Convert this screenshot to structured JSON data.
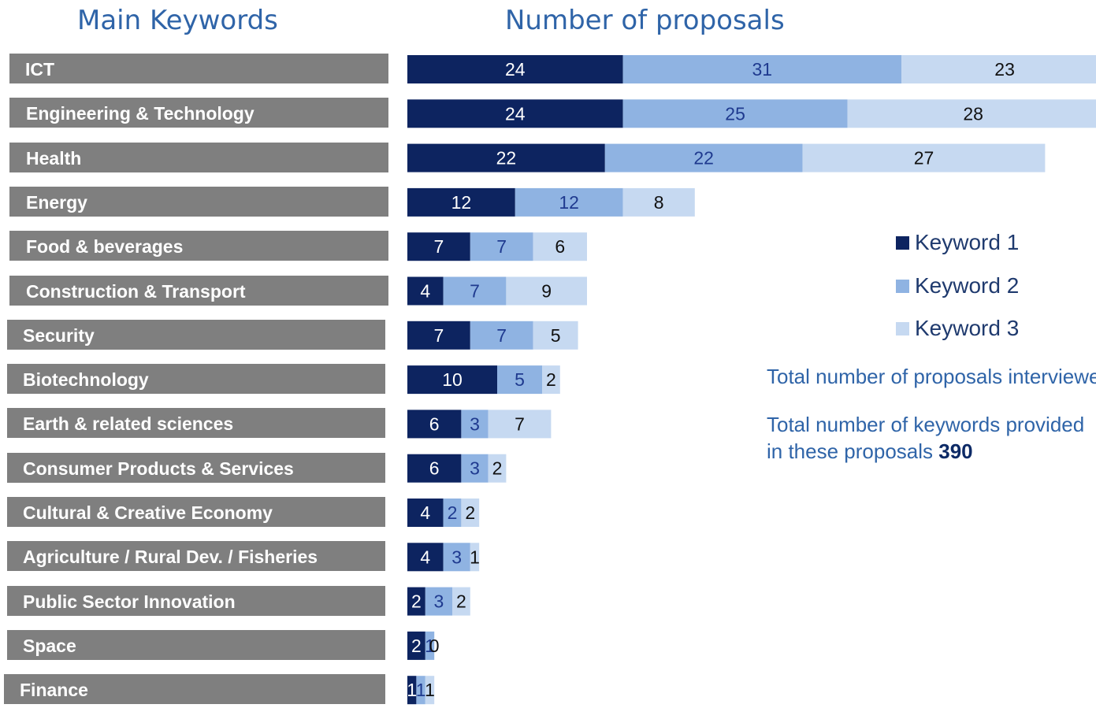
{
  "headings": {
    "keywords": "Main Keywords",
    "proposals": "Number of proposals"
  },
  "colors": {
    "keyword1": "#0d2460",
    "keyword2": "#8fb3e2",
    "keyword3": "#c6d9f1",
    "label_bg": "#7f7f7f",
    "heading": "#2f64a8"
  },
  "chart_data": {
    "type": "bar",
    "orientation": "horizontal",
    "stacked": true,
    "categories": [
      "ICT",
      "Engineering & Technology",
      "Health",
      "Energy",
      "Food & beverages",
      "Construction & Transport",
      "Security",
      "Biotechnology",
      "Earth & related sciences",
      "Consumer Products & Services",
      "Cultural & Creative Economy",
      "Agriculture / Rural Dev. / Fisheries",
      "Public Sector Innovation",
      "Space",
      "Finance"
    ],
    "series": [
      {
        "name": "Keyword 1",
        "values": [
          24,
          24,
          22,
          12,
          7,
          4,
          7,
          10,
          6,
          6,
          4,
          4,
          2,
          2,
          1
        ]
      },
      {
        "name": "Keyword 2",
        "values": [
          31,
          25,
          22,
          12,
          7,
          7,
          7,
          5,
          3,
          3,
          2,
          3,
          3,
          1,
          1
        ]
      },
      {
        "name": "Keyword 3",
        "values": [
          23,
          28,
          27,
          8,
          6,
          9,
          5,
          2,
          7,
          2,
          2,
          1,
          2,
          0,
          1
        ]
      }
    ],
    "legend": "right",
    "grid": false,
    "data_labels": true
  },
  "notes": {
    "interviewed_text": "Total number of proposals interviewed",
    "keywords_line1": "Total number of keywords provided",
    "keywords_line2": "in these proposals ",
    "keywords_total": "390"
  }
}
